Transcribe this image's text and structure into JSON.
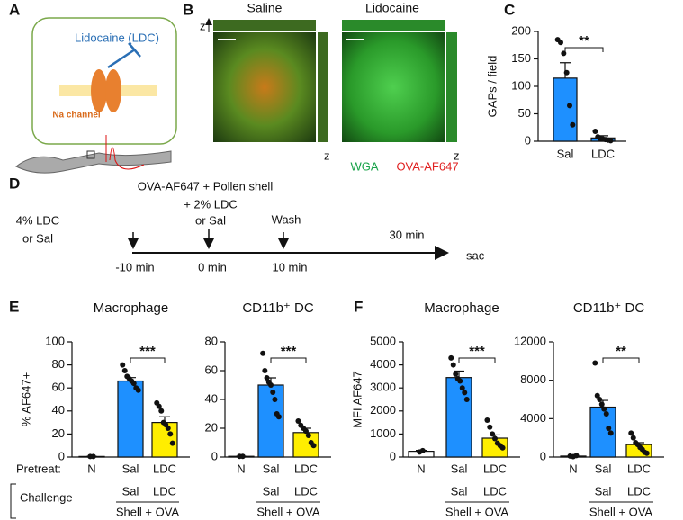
{
  "panels": {
    "a": "A",
    "b": "B",
    "c": "C",
    "d": "D",
    "e": "E",
    "f": "F"
  },
  "diagram_a": {
    "drug": "Lidocaine (LDC)",
    "channel": "Na channel"
  },
  "images_b": {
    "left_title": "Saline",
    "right_title": "Lidocaine",
    "axis_z": "z",
    "legend": [
      "WGA",
      "OVA-AF647"
    ]
  },
  "timeline_d": {
    "pretreat": [
      "4% LDC",
      "or Sal"
    ],
    "challenge": [
      "OVA-AF647 + Pollen shell",
      "+ 2% LDC",
      "or Sal"
    ],
    "wash": "Wash",
    "end": "30 min",
    "times": [
      "-10 min",
      "0 min",
      "10 min"
    ],
    "sac": "sac"
  },
  "rows": {
    "pretreat": "Pretreat:",
    "challenge": "Challenge"
  },
  "chart_data": [
    {
      "type": "bar",
      "ylabel": "GAPs / field",
      "categories": [
        "Sal",
        "LDC"
      ],
      "values": [
        115,
        6
      ],
      "errors": [
        28,
        4
      ],
      "points": [
        [
          185,
          180,
          160,
          125,
          65,
          30
        ],
        [
          18,
          8,
          5,
          4,
          3,
          2,
          1
        ]
      ],
      "colors": [
        "#1e90ff",
        "#1e90ff"
      ],
      "ylim": [
        0,
        200
      ],
      "yticks": [
        0,
        50,
        100,
        150,
        200
      ],
      "significance": "**"
    },
    {
      "type": "bar",
      "title": "Macrophage",
      "ylabel": "% AF647+",
      "categories": [
        "N",
        "Sal",
        "LDC"
      ],
      "values": [
        0.5,
        66,
        30
      ],
      "errors": [
        0,
        3,
        5
      ],
      "points": [
        [
          0.5,
          0.5
        ],
        [
          80,
          75,
          70,
          68,
          66,
          64,
          60,
          58
        ],
        [
          47,
          44,
          40,
          30,
          28,
          25,
          20,
          12
        ]
      ],
      "colors": [
        "#ffffff",
        "#1e90ff",
        "#ffee00"
      ],
      "ylim": [
        0,
        100
      ],
      "yticks": [
        0,
        20,
        40,
        60,
        80,
        100
      ],
      "significance": "***",
      "challenge": [
        "Sal",
        "LDC"
      ],
      "group": "Shell + OVA"
    },
    {
      "type": "bar",
      "title": "CD11b⁺ DC",
      "categories": [
        "N",
        "Sal",
        "LDC"
      ],
      "values": [
        0.5,
        50,
        17
      ],
      "errors": [
        0,
        5,
        3
      ],
      "points": [
        [
          0.5,
          0.5
        ],
        [
          72,
          60,
          55,
          52,
          50,
          45,
          40,
          30,
          28
        ],
        [
          25,
          22,
          20,
          18,
          15,
          10,
          8
        ]
      ],
      "colors": [
        "#ffffff",
        "#1e90ff",
        "#ffee00"
      ],
      "ylim": [
        0,
        80
      ],
      "yticks": [
        0,
        20,
        40,
        60,
        80
      ],
      "significance": "***",
      "challenge": [
        "Sal",
        "LDC"
      ],
      "group": "Shell + OVA"
    },
    {
      "type": "bar",
      "title": "Macrophage",
      "ylabel": "MFI AF647",
      "categories": [
        "N",
        "Sal",
        "LDC"
      ],
      "values": [
        250,
        3450,
        820
      ],
      "errors": [
        40,
        280,
        140
      ],
      "points": [
        [
          220,
          280
        ],
        [
          4300,
          4000,
          3600,
          3400,
          3300,
          3000,
          2800,
          2500
        ],
        [
          1600,
          1300,
          1000,
          800,
          600,
          500,
          400
        ]
      ],
      "colors": [
        "#ffffff",
        "#1e90ff",
        "#ffee00"
      ],
      "ylim": [
        0,
        5000
      ],
      "yticks": [
        0,
        1000,
        2000,
        3000,
        4000,
        5000
      ],
      "significance": "***",
      "challenge": [
        "Sal",
        "LDC"
      ],
      "group": "Shell + OVA"
    },
    {
      "type": "bar",
      "title": "CD11b⁺ DC",
      "categories": [
        "N",
        "Sal",
        "LDC"
      ],
      "values": [
        100,
        5200,
        1300
      ],
      "errors": [
        30,
        700,
        200
      ],
      "points": [
        [
          100,
          50,
          150
        ],
        [
          9800,
          6400,
          6000,
          5500,
          5000,
          4500,
          3000,
          2500
        ],
        [
          2500,
          2000,
          1500,
          1300,
          1000,
          800,
          500,
          400
        ]
      ],
      "colors": [
        "#ffffff",
        "#1e90ff",
        "#ffee00"
      ],
      "ylim": [
        0,
        12000
      ],
      "yticks": [
        0,
        4000,
        8000,
        12000
      ],
      "significance": "**",
      "challenge": [
        "Sal",
        "LDC"
      ],
      "group": "Shell + OVA"
    }
  ]
}
